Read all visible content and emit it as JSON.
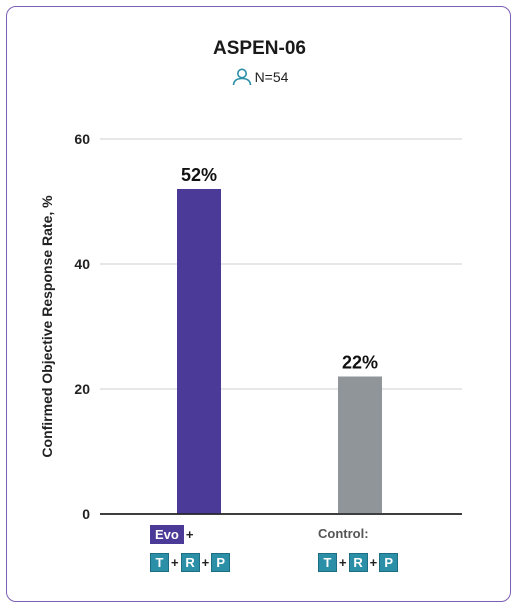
{
  "title": "ASPEN-06",
  "n_label": "N=54",
  "icons": {
    "patient": "person-outline-icon"
  },
  "colors": {
    "evo": "#4b3a97",
    "control": "#8f9598",
    "drug_chip": "#2b8fa8",
    "border": "#7b5fb5"
  },
  "x_groups": [
    {
      "prefix_chip": "Evo",
      "prefix_text": "",
      "plus": "+",
      "drugs": [
        "T",
        "R",
        "P"
      ]
    },
    {
      "prefix_chip": "",
      "prefix_text": "Control:",
      "plus": "",
      "drugs": [
        "T",
        "R",
        "P"
      ]
    }
  ],
  "drug_plus": "+",
  "chart_data": {
    "type": "bar",
    "title": "ASPEN-06",
    "ylabel": "Confirmed Objective Response Rate, %",
    "ylim": [
      0,
      60
    ],
    "yticks": [
      0,
      20,
      40,
      60
    ],
    "grid": true,
    "categories": [
      "Evo + T + R + P",
      "Control: T + R + P"
    ],
    "values": [
      52,
      22
    ],
    "value_labels": [
      "52%",
      "22%"
    ],
    "bar_colors": [
      "#4b3a97",
      "#8f9598"
    ]
  }
}
